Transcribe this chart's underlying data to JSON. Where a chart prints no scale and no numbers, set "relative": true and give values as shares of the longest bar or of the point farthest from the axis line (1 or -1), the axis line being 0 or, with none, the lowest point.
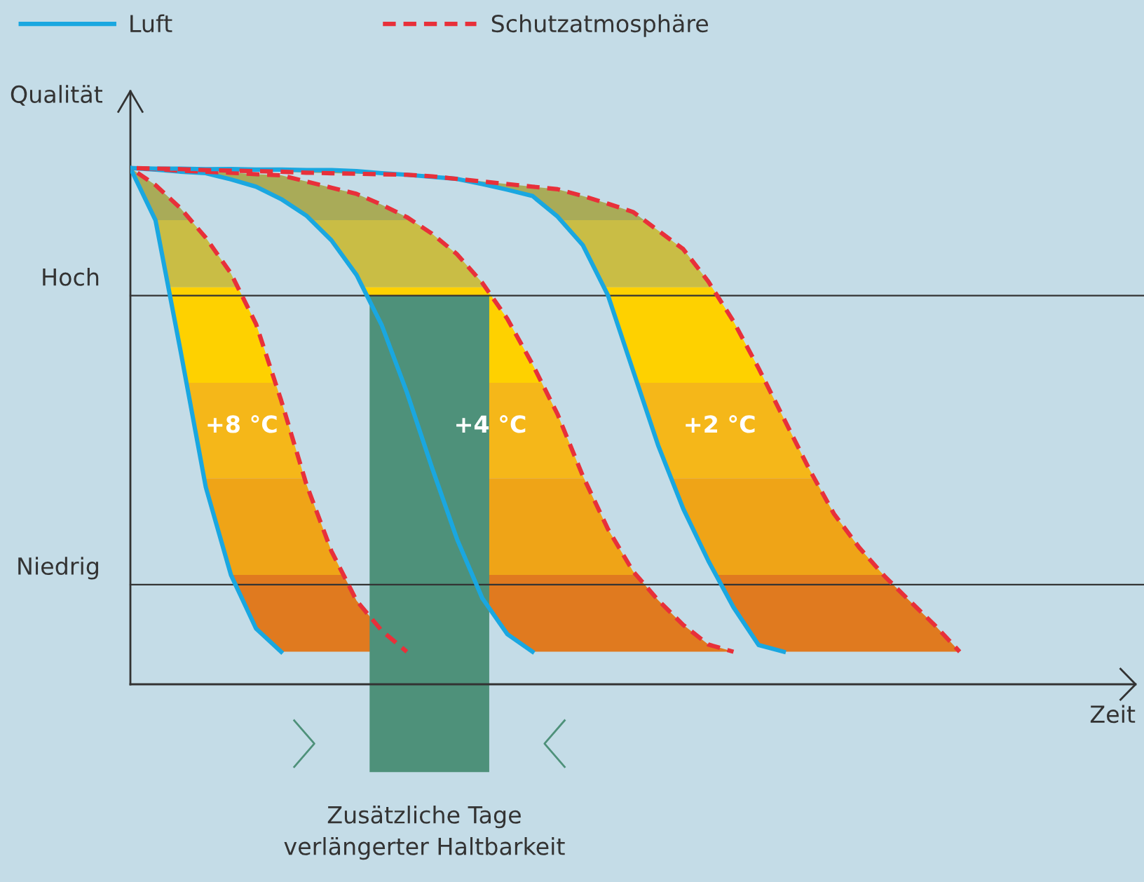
{
  "chart_data": {
    "type": "line",
    "relative": true,
    "ylabel": "Qualität",
    "legend": "top left",
    "marker": "none",
    "ref_lines": [
      {
        "axis": "y",
        "value": 0.753,
        "label": "Hoch",
        "color": "#333333"
      },
      {
        "axis": "y",
        "value": 0.193,
        "label": "Niedrig",
        "color": "#333333"
      }
    ],
    "categories": [
      null,
      null,
      null,
      null,
      null,
      null,
      null,
      null,
      null,
      null,
      null,
      null,
      null,
      null,
      null,
      null,
      null,
      null,
      null,
      null,
      null,
      null,
      null,
      null,
      null,
      null,
      null,
      null,
      null,
      null,
      null,
      null,
      null,
      null
    ],
    "series": [
      {
        "name": "Luft",
        "color": "#1aa7e0",
        "line_style": "solid",
        "values": [
          1.0,
          0.899,
          0.645,
          0.382,
          0.212,
          0.108,
          0.063,
          null,
          null,
          null,
          null,
          null,
          null,
          null,
          null,
          null,
          null,
          null,
          null,
          null,
          null,
          null,
          null,
          null,
          null,
          null,
          null,
          null,
          null,
          null,
          null,
          null,
          null,
          null
        ]
      },
      {
        "name": "Schutzatmosphäre",
        "color": "#e8303a",
        "line_style": "dashed",
        "values": [
          1.0,
          0.967,
          0.922,
          0.865,
          0.796,
          0.698,
          0.55,
          0.388,
          0.258,
          0.162,
          0.104,
          0.063,
          null,
          null,
          null,
          null,
          null,
          null,
          null,
          null,
          null,
          null,
          null,
          null,
          null,
          null,
          null,
          null,
          null,
          null,
          null,
          null,
          null,
          null
        ]
      },
      {
        "color": "#1aa7e0",
        "line_style": "solid",
        "values": [
          1.0,
          0.997,
          0.993,
          0.99,
          0.978,
          0.964,
          0.94,
          0.908,
          0.86,
          0.793,
          0.696,
          0.566,
          0.42,
          0.281,
          0.167,
          0.097,
          0.063,
          null,
          null,
          null,
          null,
          null,
          null,
          null,
          null,
          null,
          null,
          null,
          null,
          null,
          null,
          null,
          null,
          null
        ]
      },
      {
        "color": "#e8303a",
        "line_style": "dashed",
        "values": [
          1.0,
          0.998,
          0.995,
          0.993,
          0.991,
          0.988,
          0.986,
          0.974,
          0.962,
          0.95,
          0.929,
          0.905,
          0.873,
          0.833,
          0.778,
          0.708,
          0.62,
          0.523,
          0.404,
          0.301,
          0.219,
          0.163,
          0.115,
          0.077,
          0.063,
          null,
          null,
          null,
          null,
          null,
          null,
          null,
          null,
          null
        ]
      },
      {
        "color": "#1aa7e0",
        "line_style": "solid",
        "values": [
          1.0,
          0.999,
          0.999,
          0.998,
          0.998,
          0.997,
          0.997,
          0.996,
          0.996,
          0.994,
          0.99,
          0.987,
          0.983,
          0.979,
          0.969,
          0.958,
          0.946,
          0.906,
          0.851,
          0.754,
          0.608,
          0.463,
          0.34,
          0.239,
          0.149,
          0.076,
          0.063,
          null,
          null,
          null,
          null,
          null,
          null,
          null
        ]
      },
      {
        "color": "#e8303a",
        "line_style": "dashed",
        "values": [
          1.0,
          0.999,
          0.998,
          0.996,
          0.995,
          0.994,
          0.993,
          0.991,
          0.99,
          0.989,
          0.988,
          0.987,
          0.984,
          0.979,
          0.974,
          0.969,
          0.964,
          0.959,
          0.946,
          0.931,
          0.915,
          0.879,
          0.843,
          0.78,
          0.703,
          0.612,
          0.515,
          0.418,
          0.33,
          0.265,
          0.21,
          0.162,
          0.115,
          0.063
        ]
      }
    ],
    "annotations": [
      "+8 °C",
      "+4 °C",
      "+2 °C",
      "Zusätzliche Tage\nverlängerter Haltbarkeit",
      "Zeit"
    ]
  }
}
